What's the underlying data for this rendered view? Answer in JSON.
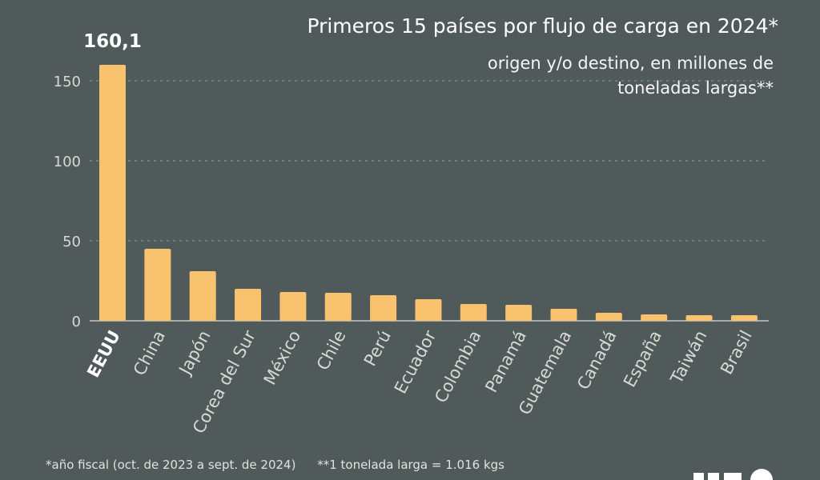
{
  "title": "Primeros 15 países por flujo de carga en 2024*",
  "subtitle": "origen y/o destino, en millones de toneladas largas**",
  "footnotes": {
    "fiscal": "*año fiscal (oct. de 2023 a sept. de 2024)",
    "unit": "**1 tonelada larga = 1.016 kgs"
  },
  "colors": {
    "background": "#515a5a",
    "bar": "#f8c26f",
    "text": "#ffffff",
    "muted_text": "#d9d9d3",
    "grid": "#8b9393"
  },
  "chart_data": {
    "type": "bar",
    "categories": [
      "EEUU",
      "China",
      "Japón",
      "Corea del Sur",
      "México",
      "Chile",
      "Perú",
      "Ecuador",
      "Colombia",
      "Panamá",
      "Guatemala",
      "Canadá",
      "España",
      "Taiwán",
      "Brasil"
    ],
    "values": [
      160.1,
      45,
      31,
      20,
      18,
      17.5,
      16,
      13.5,
      10.5,
      10,
      7.5,
      5,
      4,
      3.5,
      3.5
    ],
    "data_labels": [
      {
        "category": "EEUU",
        "text": "160,1"
      }
    ],
    "y_ticks": [
      "0",
      "50",
      "100",
      "150"
    ],
    "ylim": [
      0,
      160.1
    ],
    "grid": true
  }
}
